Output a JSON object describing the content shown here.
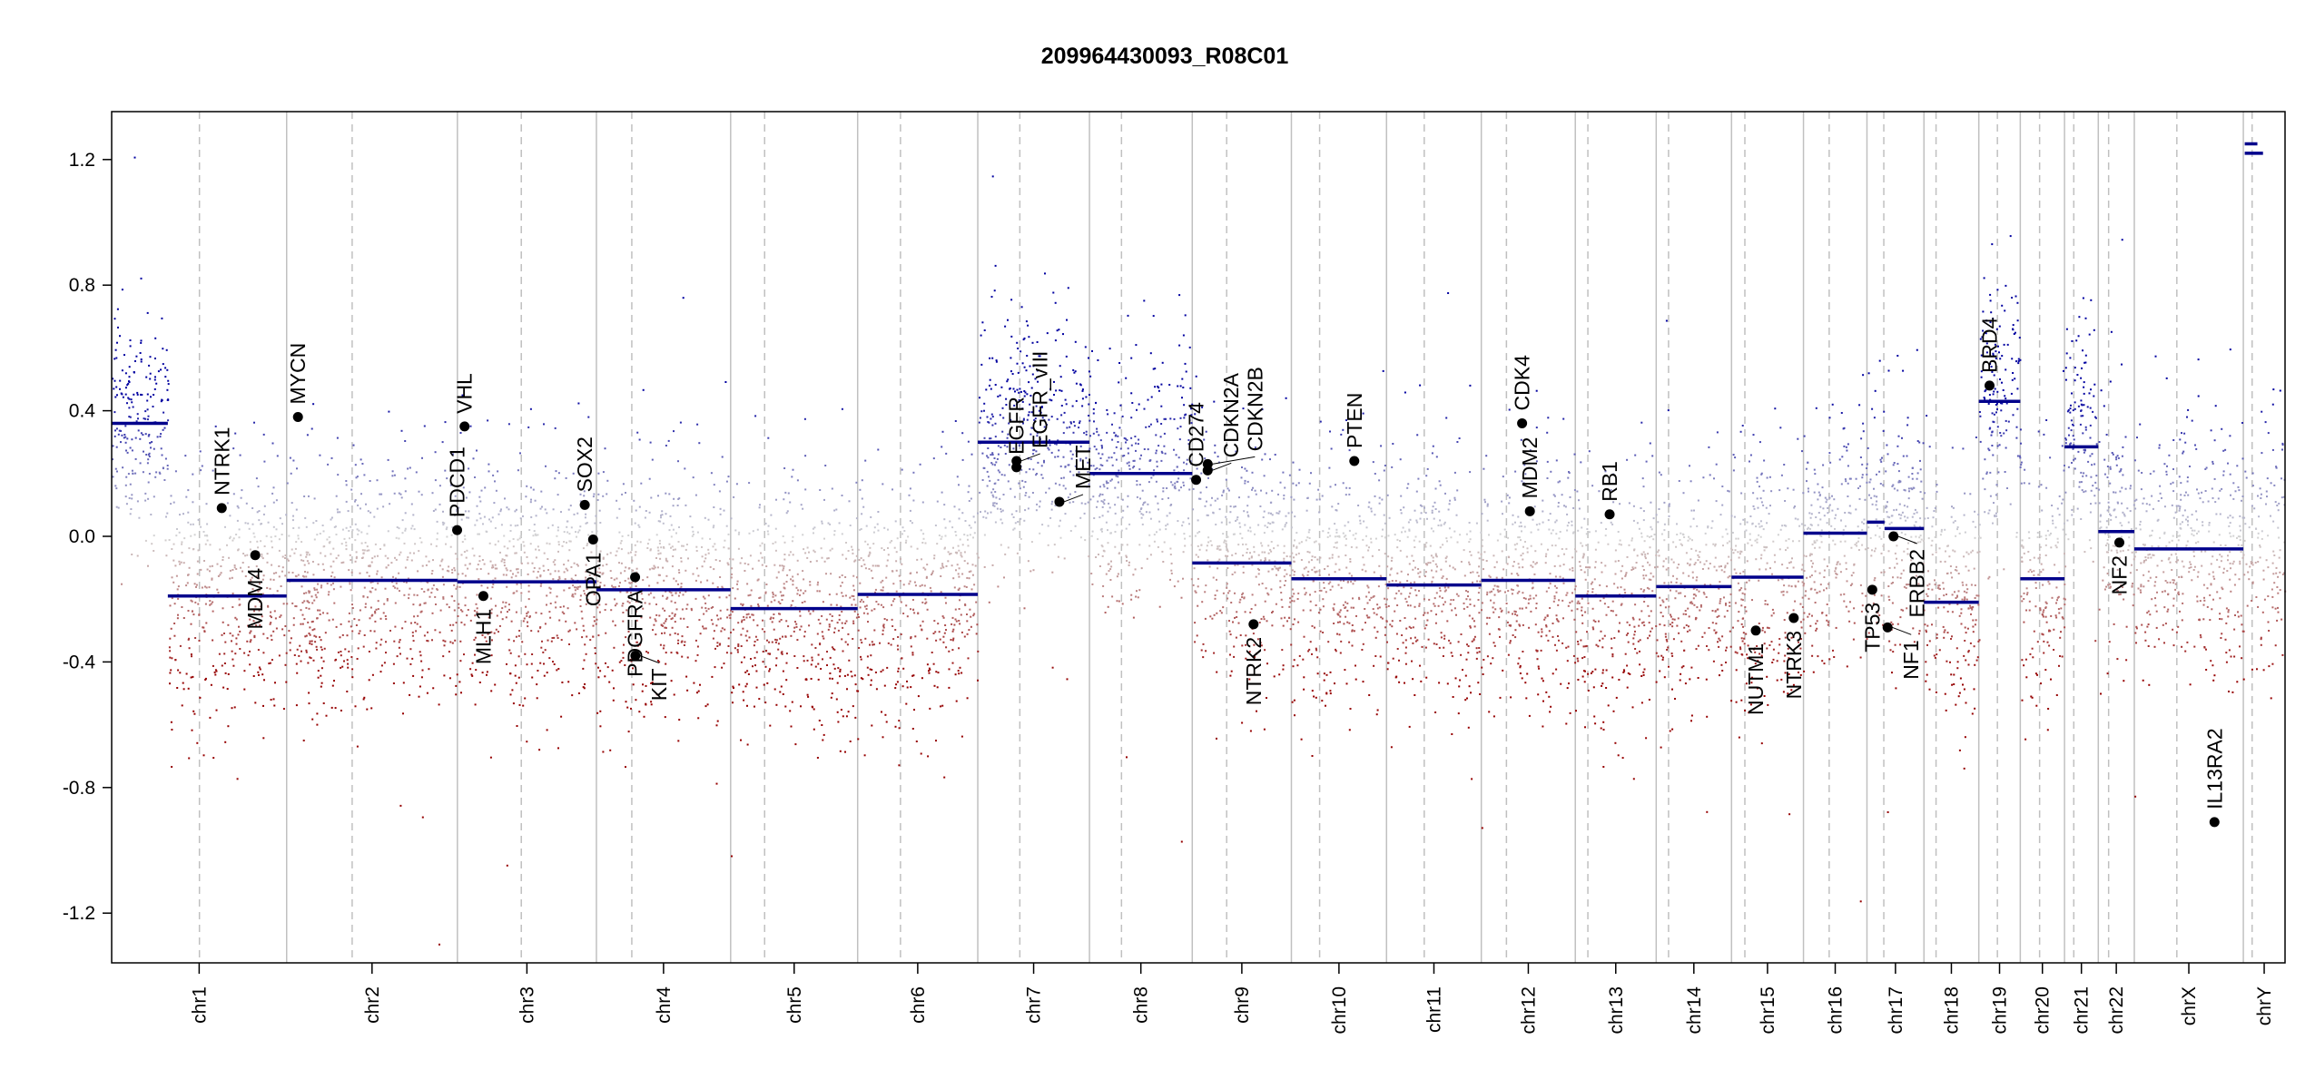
{
  "chart_data": {
    "type": "scatter",
    "title": "209964430093_R08C01",
    "xlabel": "",
    "ylabel": "",
    "ylim": [
      -1.35,
      1.35
    ],
    "y_ticks": [
      "-1.2",
      "-0.8",
      "-0.4",
      "0.0",
      "0.4",
      "0.8",
      "1.2"
    ],
    "grid": false,
    "colors": {
      "gain": "#00008b",
      "neutral": "#d3d3d3",
      "loss": "#8b0000",
      "segment": "#00008b",
      "gene": "#000000",
      "chrom_line": "#c0c0c0"
    },
    "chromosomes": [
      {
        "name": "chr1",
        "length_mb": 249.25,
        "centromere_mb": 125.0
      },
      {
        "name": "chr2",
        "length_mb": 243.2,
        "centromere_mb": 93.3
      },
      {
        "name": "chr3",
        "length_mb": 198.0,
        "centromere_mb": 91.0
      },
      {
        "name": "chr4",
        "length_mb": 191.2,
        "centromere_mb": 50.4
      },
      {
        "name": "chr5",
        "length_mb": 180.9,
        "centromere_mb": 48.4
      },
      {
        "name": "chr6",
        "length_mb": 171.1,
        "centromere_mb": 61.0
      },
      {
        "name": "chr7",
        "length_mb": 159.1,
        "centromere_mb": 59.9
      },
      {
        "name": "chr8",
        "length_mb": 146.4,
        "centromere_mb": 45.6
      },
      {
        "name": "chr9",
        "length_mb": 141.2,
        "centromere_mb": 49.0
      },
      {
        "name": "chr10",
        "length_mb": 135.5,
        "centromere_mb": 40.2
      },
      {
        "name": "chr11",
        "length_mb": 135.0,
        "centromere_mb": 53.7
      },
      {
        "name": "chr12",
        "length_mb": 133.9,
        "centromere_mb": 35.8
      },
      {
        "name": "chr13",
        "length_mb": 115.2,
        "centromere_mb": 17.9
      },
      {
        "name": "chr14",
        "length_mb": 107.3,
        "centromere_mb": 17.6
      },
      {
        "name": "chr15",
        "length_mb": 102.5,
        "centromere_mb": 19.0
      },
      {
        "name": "chr16",
        "length_mb": 90.4,
        "centromere_mb": 36.6
      },
      {
        "name": "chr17",
        "length_mb": 81.2,
        "centromere_mb": 24.0
      },
      {
        "name": "chr18",
        "length_mb": 78.1,
        "centromere_mb": 17.2
      },
      {
        "name": "chr19",
        "length_mb": 59.1,
        "centromere_mb": 26.5
      },
      {
        "name": "chr20",
        "length_mb": 63.0,
        "centromere_mb": 27.5
      },
      {
        "name": "chr21",
        "length_mb": 48.1,
        "centromere_mb": 13.2
      },
      {
        "name": "chr22",
        "length_mb": 51.3,
        "centromere_mb": 14.7
      },
      {
        "name": "chrX",
        "length_mb": 155.3,
        "centromere_mb": 60.6
      },
      {
        "name": "chrY",
        "length_mb": 59.4,
        "centromere_mb": 12.5
      }
    ],
    "segments": [
      {
        "chr": "chr1",
        "start_mb": 0,
        "end_mb": 80,
        "value": 0.36
      },
      {
        "chr": "chr1",
        "start_mb": 80,
        "end_mb": 249.25,
        "value": -0.19
      },
      {
        "chr": "chr2",
        "start_mb": 0,
        "end_mb": 243.2,
        "value": -0.14
      },
      {
        "chr": "chr3",
        "start_mb": 0,
        "end_mb": 198.0,
        "value": -0.145
      },
      {
        "chr": "chr4",
        "start_mb": 0,
        "end_mb": 191.2,
        "value": -0.17
      },
      {
        "chr": "chr5",
        "start_mb": 0,
        "end_mb": 180.9,
        "value": -0.23
      },
      {
        "chr": "chr6",
        "start_mb": 0,
        "end_mb": 171.1,
        "value": -0.185
      },
      {
        "chr": "chr7",
        "start_mb": 0,
        "end_mb": 159.1,
        "value": 0.3
      },
      {
        "chr": "chr8",
        "start_mb": 0,
        "end_mb": 146.4,
        "value": 0.2
      },
      {
        "chr": "chr9",
        "start_mb": 0,
        "end_mb": 141.2,
        "value": -0.085
      },
      {
        "chr": "chr10",
        "start_mb": 0,
        "end_mb": 135.5,
        "value": -0.135
      },
      {
        "chr": "chr11",
        "start_mb": 0,
        "end_mb": 135.0,
        "value": -0.155
      },
      {
        "chr": "chr12",
        "start_mb": 0,
        "end_mb": 133.9,
        "value": -0.14
      },
      {
        "chr": "chr13",
        "start_mb": 0,
        "end_mb": 115.2,
        "value": -0.19
      },
      {
        "chr": "chr14",
        "start_mb": 0,
        "end_mb": 107.3,
        "value": -0.16
      },
      {
        "chr": "chr15",
        "start_mb": 0,
        "end_mb": 102.5,
        "value": -0.13
      },
      {
        "chr": "chr16",
        "start_mb": 0,
        "end_mb": 90.4,
        "value": 0.01
      },
      {
        "chr": "chr17",
        "start_mb": 0,
        "end_mb": 25,
        "value": 0.045
      },
      {
        "chr": "chr17",
        "start_mb": 25,
        "end_mb": 81.2,
        "value": 0.025
      },
      {
        "chr": "chr18",
        "start_mb": 0,
        "end_mb": 78.1,
        "value": -0.21
      },
      {
        "chr": "chr19",
        "start_mb": 0,
        "end_mb": 59.1,
        "value": 0.43
      },
      {
        "chr": "chr20",
        "start_mb": 0,
        "end_mb": 63.0,
        "value": -0.135
      },
      {
        "chr": "chr21",
        "start_mb": 0,
        "end_mb": 48.1,
        "value": 0.285
      },
      {
        "chr": "chr22",
        "start_mb": 0,
        "end_mb": 51.3,
        "value": 0.015
      },
      {
        "chr": "chrX",
        "start_mb": 0,
        "end_mb": 155.3,
        "value": -0.04
      },
      {
        "chr": "chrY",
        "start_mb": 2,
        "end_mb": 20,
        "value": 1.25
      },
      {
        "chr": "chrY",
        "start_mb": 2,
        "end_mb": 28,
        "value": 1.22
      }
    ],
    "genes": [
      {
        "name": "NTRK1",
        "chr": "chr1",
        "pos_mb": 156.8,
        "value": 0.09
      },
      {
        "name": "MDM4",
        "chr": "chr1",
        "pos_mb": 204.5,
        "value": -0.06
      },
      {
        "name": "MYCN",
        "chr": "chr2",
        "pos_mb": 16.1,
        "value": 0.38
      },
      {
        "name": "PDCD1",
        "chr": "chr2",
        "pos_mb": 242.8,
        "value": 0.02
      },
      {
        "name": "VHL",
        "chr": "chr3",
        "pos_mb": 10.2,
        "value": 0.35
      },
      {
        "name": "MLH1",
        "chr": "chr3",
        "pos_mb": 37.0,
        "value": -0.19
      },
      {
        "name": "SOX2",
        "chr": "chr3",
        "pos_mb": 181.4,
        "value": 0.1
      },
      {
        "name": "OPA1",
        "chr": "chr3",
        "pos_mb": 193.3,
        "value": -0.01
      },
      {
        "name": "PDGFRA",
        "chr": "chr4",
        "pos_mb": 55.1,
        "value": -0.13
      },
      {
        "name": "KIT",
        "chr": "chr4",
        "pos_mb": 55.5,
        "value": -0.38
      },
      {
        "name": "EGFR",
        "chr": "chr7",
        "pos_mb": 55.1,
        "value": 0.22
      },
      {
        "name": "EGFR_vIII",
        "chr": "chr7",
        "pos_mb": 55.2,
        "value": 0.24
      },
      {
        "name": "MET",
        "chr": "chr7",
        "pos_mb": 116.3,
        "value": 0.11
      },
      {
        "name": "CD274",
        "chr": "chr9",
        "pos_mb": 5.5,
        "value": 0.18
      },
      {
        "name": "CDKN2A",
        "chr": "chr9",
        "pos_mb": 21.9,
        "value": 0.21
      },
      {
        "name": "CDKN2B",
        "chr": "chr9",
        "pos_mb": 22.0,
        "value": 0.23
      },
      {
        "name": "NTRK2",
        "chr": "chr9",
        "pos_mb": 87.3,
        "value": -0.28
      },
      {
        "name": "PTEN",
        "chr": "chr10",
        "pos_mb": 89.6,
        "value": 0.24
      },
      {
        "name": "CDK4",
        "chr": "chr12",
        "pos_mb": 58.1,
        "value": 0.36
      },
      {
        "name": "MDM2",
        "chr": "chr12",
        "pos_mb": 69.2,
        "value": 0.08
      },
      {
        "name": "RB1",
        "chr": "chr13",
        "pos_mb": 48.9,
        "value": 0.07
      },
      {
        "name": "NUTM1",
        "chr": "chr15",
        "pos_mb": 34.6,
        "value": -0.3
      },
      {
        "name": "NTRK3",
        "chr": "chr15",
        "pos_mb": 88.6,
        "value": -0.26
      },
      {
        "name": "TP53",
        "chr": "chr17",
        "pos_mb": 7.6,
        "value": -0.17
      },
      {
        "name": "NF1",
        "chr": "chr17",
        "pos_mb": 29.4,
        "value": -0.29
      },
      {
        "name": "ERBB2",
        "chr": "chr17",
        "pos_mb": 37.8,
        "value": 0.0
      },
      {
        "name": "BRD4",
        "chr": "chr19",
        "pos_mb": 15.3,
        "value": 0.48
      },
      {
        "name": "NF2",
        "chr": "chr22",
        "pos_mb": 30.0,
        "value": -0.02
      },
      {
        "name": "IL13RA2",
        "chr": "chrX",
        "pos_mb": 114.2,
        "value": -0.91
      }
    ]
  }
}
